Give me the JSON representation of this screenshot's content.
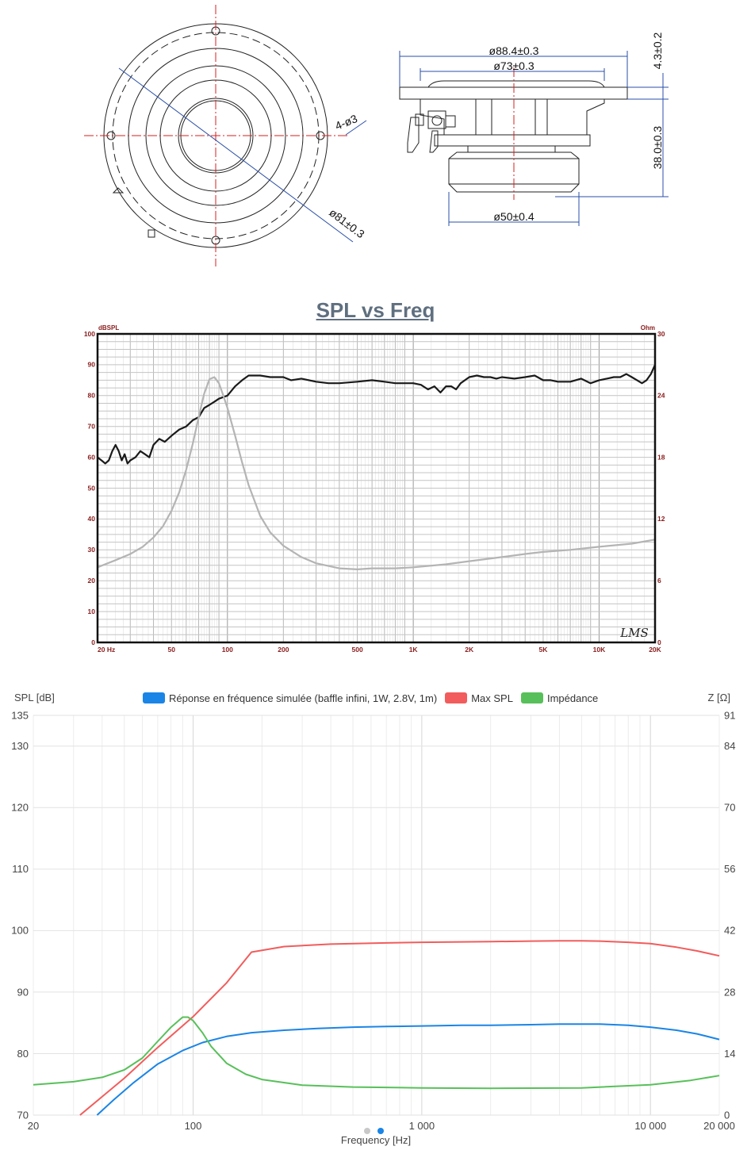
{
  "drawing": {
    "front_labels": {
      "holes": "4-ø3",
      "diameter": "ø81±0.3"
    },
    "side_labels": {
      "outer_diameter": "ø88.4±0.3",
      "frame_diameter": "ø73±0.3",
      "magnet_diameter": "ø50±0.4",
      "flange_height": "4.3±0.2",
      "depth": "38.0±0.3"
    }
  },
  "chart_data": [
    {
      "type": "line",
      "title": "SPL vs Freq",
      "y_left_unit": "dBSPL",
      "y_right_unit": "Ohm",
      "x_scale": "log",
      "xlim": [
        20,
        20000
      ],
      "ylim": [
        0,
        100
      ],
      "y2lim": [
        0,
        30
      ],
      "y_ticks": [
        "0",
        "10",
        "20",
        "30",
        "40",
        "50",
        "60",
        "70",
        "80",
        "90",
        "100"
      ],
      "y2_ticks": [
        "0",
        "6",
        "12",
        "18",
        "24",
        "30"
      ],
      "x_ticks": [
        {
          "v": 20,
          "label": "20  Hz"
        },
        {
          "v": 50,
          "label": "50"
        },
        {
          "v": 100,
          "label": "100"
        },
        {
          "v": 200,
          "label": "200"
        },
        {
          "v": 500,
          "label": "500"
        },
        {
          "v": 1000,
          "label": "1K"
        },
        {
          "v": 2000,
          "label": "2K"
        },
        {
          "v": 5000,
          "label": "5K"
        },
        {
          "v": 10000,
          "label": "10K"
        },
        {
          "v": 20000,
          "label": "20K"
        }
      ],
      "grid": true,
      "watermark": "LMS",
      "colors": {
        "spl": "#1a1a1a",
        "impedance": "#b4b4b4",
        "frame": "#111111",
        "axis_text": "#8a1c1c",
        "title": "#5f6f7f"
      },
      "series": [
        {
          "axis": "left",
          "x": [
            20,
            21,
            22,
            23,
            24,
            25,
            26,
            27,
            28,
            29,
            30,
            32,
            34,
            36,
            38,
            40,
            43,
            46,
            50,
            55,
            60,
            65,
            70,
            75,
            80,
            85,
            90,
            95,
            100,
            110,
            120,
            130,
            140,
            150,
            170,
            200,
            220,
            250,
            300,
            350,
            400,
            500,
            600,
            700,
            800,
            900,
            1000,
            1100,
            1200,
            1300,
            1400,
            1500,
            1600,
            1700,
            1800,
            2000,
            2200,
            2400,
            2600,
            2800,
            3000,
            3500,
            4000,
            4500,
            5000,
            5500,
            6000,
            7000,
            8000,
            9000,
            10000,
            11000,
            12000,
            13000,
            14000,
            15000,
            16000,
            17000,
            18000,
            19000,
            20000
          ],
          "y": [
            60,
            59,
            58,
            59,
            62,
            64,
            62,
            59,
            61,
            58,
            59,
            60,
            62,
            61,
            60,
            64,
            66,
            65,
            67,
            69,
            70,
            72,
            73,
            76,
            77,
            78,
            79,
            79.5,
            80,
            83,
            85,
            86.5,
            86.5,
            86.5,
            86,
            86,
            85,
            85.5,
            84.5,
            84,
            84,
            84.5,
            85,
            84.5,
            84,
            84,
            84,
            83.5,
            82,
            83,
            81,
            83,
            83,
            82,
            84,
            86,
            86.5,
            86,
            86,
            85.5,
            86,
            85.5,
            86,
            86.5,
            85,
            85,
            84.5,
            84.5,
            85.5,
            84,
            85,
            85.5,
            86,
            86,
            87,
            86,
            85,
            84,
            85,
            87,
            90
          ]
        },
        {
          "axis": "right",
          "x": [
            20,
            25,
            30,
            35,
            40,
            45,
            50,
            55,
            60,
            65,
            70,
            75,
            80,
            85,
            90,
            95,
            100,
            110,
            120,
            130,
            150,
            170,
            200,
            250,
            300,
            400,
            500,
            600,
            800,
            1000,
            1500,
            2000,
            3000,
            4000,
            5000,
            7000,
            10000,
            15000,
            20000
          ],
          "y": [
            7.3,
            8,
            8.6,
            9.3,
            10.2,
            11.3,
            12.8,
            14.6,
            16.8,
            19.3,
            21.9,
            24.2,
            25.6,
            25.8,
            25.2,
            24,
            22.8,
            20.1,
            17.5,
            15.3,
            12.3,
            10.7,
            9.4,
            8.3,
            7.7,
            7.2,
            7.1,
            7.2,
            7.2,
            7.3,
            7.6,
            7.9,
            8.3,
            8.6,
            8.8,
            9,
            9.3,
            9.6,
            10
          ]
        }
      ]
    },
    {
      "type": "line",
      "ylabel": "SPL [dB]",
      "y2label": "Z [Ω]",
      "xlabel": "Frequency [Hz]",
      "x_scale": "log",
      "xlim": [
        20,
        20000
      ],
      "ylim": [
        70,
        135
      ],
      "y2lim": [
        0,
        91
      ],
      "y_ticks": [
        "70",
        "80",
        "90",
        "100",
        "110",
        "120",
        "130",
        "135"
      ],
      "y2_ticks": [
        "0",
        "14",
        "28",
        "42",
        "56",
        "70",
        "84",
        "91"
      ],
      "x_ticks": [
        {
          "v": 20,
          "label": "20"
        },
        {
          "v": 100,
          "label": "100"
        },
        {
          "v": 1000,
          "label": "1 000"
        },
        {
          "v": 10000,
          "label": "10 000"
        },
        {
          "v": 20000,
          "label": "20 000"
        }
      ],
      "grid": true,
      "legend_position": "top",
      "series": [
        {
          "name": "Réponse en fréquence simulée (baffle infini, 1W, 2.8V, 1m)",
          "color": "#1a85e6",
          "axis": "left",
          "x": [
            38,
            45,
            55,
            70,
            90,
            110,
            140,
            180,
            250,
            350,
            500,
            700,
            1000,
            1500,
            2000,
            3000,
            4000,
            5000,
            6000,
            8000,
            10000,
            13000,
            16000,
            20000
          ],
          "y": [
            70,
            72.5,
            75.3,
            78.3,
            80.5,
            81.8,
            82.8,
            83.4,
            83.8,
            84.1,
            84.3,
            84.4,
            84.5,
            84.6,
            84.6,
            84.7,
            84.8,
            84.8,
            84.8,
            84.6,
            84.3,
            83.8,
            83.2,
            82.3
          ]
        },
        {
          "name": "Max SPL",
          "color": "#f25c5c",
          "axis": "left",
          "x": [
            32,
            50,
            70,
            100,
            140,
            180,
            250,
            400,
            700,
            1000,
            2000,
            3000,
            4000,
            5000,
            6000,
            8000,
            10000,
            13000,
            16000,
            20000
          ],
          "y": [
            70,
            76,
            81,
            86,
            91.5,
            96.5,
            97.4,
            97.8,
            98,
            98.1,
            98.2,
            98.3,
            98.35,
            98.35,
            98.3,
            98.1,
            97.9,
            97.3,
            96.7,
            95.9
          ]
        },
        {
          "name": "Impédance",
          "color": "#58c05a",
          "axis": "right",
          "x": [
            20,
            30,
            40,
            50,
            60,
            70,
            80,
            90,
            95,
            100,
            110,
            120,
            140,
            170,
            200,
            300,
            500,
            1000,
            2000,
            5000,
            10000,
            15000,
            20000
          ],
          "y": [
            6.9,
            7.6,
            8.6,
            10.3,
            13,
            16.8,
            20,
            22.3,
            22.3,
            21.5,
            18.7,
            15.6,
            11.8,
            9.3,
            8.1,
            6.8,
            6.4,
            6.2,
            6.1,
            6.2,
            6.9,
            7.9,
            9
          ]
        }
      ],
      "pagination": {
        "dots": 2,
        "active": 1
      }
    }
  ]
}
